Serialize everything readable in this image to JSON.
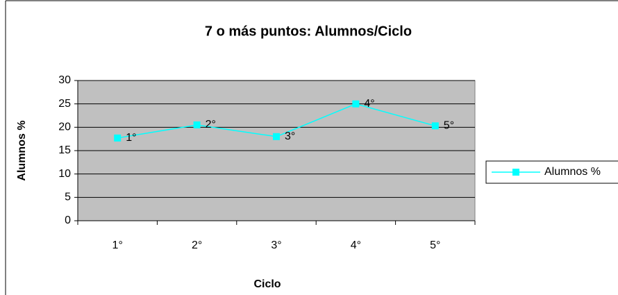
{
  "chart_data": {
    "type": "line",
    "title": "7 o más puntos: Alumnos/Ciclo",
    "x_label": "Ciclo",
    "y_label": "Alumnos %",
    "categories": [
      "1°",
      "2°",
      "3°",
      "4°",
      "5°"
    ],
    "series": [
      {
        "name": "Alumnos %",
        "color": "#00ffff",
        "values": [
          17.7,
          20.5,
          18,
          25,
          20.3
        ]
      }
    ],
    "ylim": [
      0,
      30
    ],
    "yticks": [
      0,
      5,
      10,
      15,
      20,
      25,
      30
    ],
    "grid": true,
    "legend": "right",
    "plot_background": "#c0c0c0"
  }
}
